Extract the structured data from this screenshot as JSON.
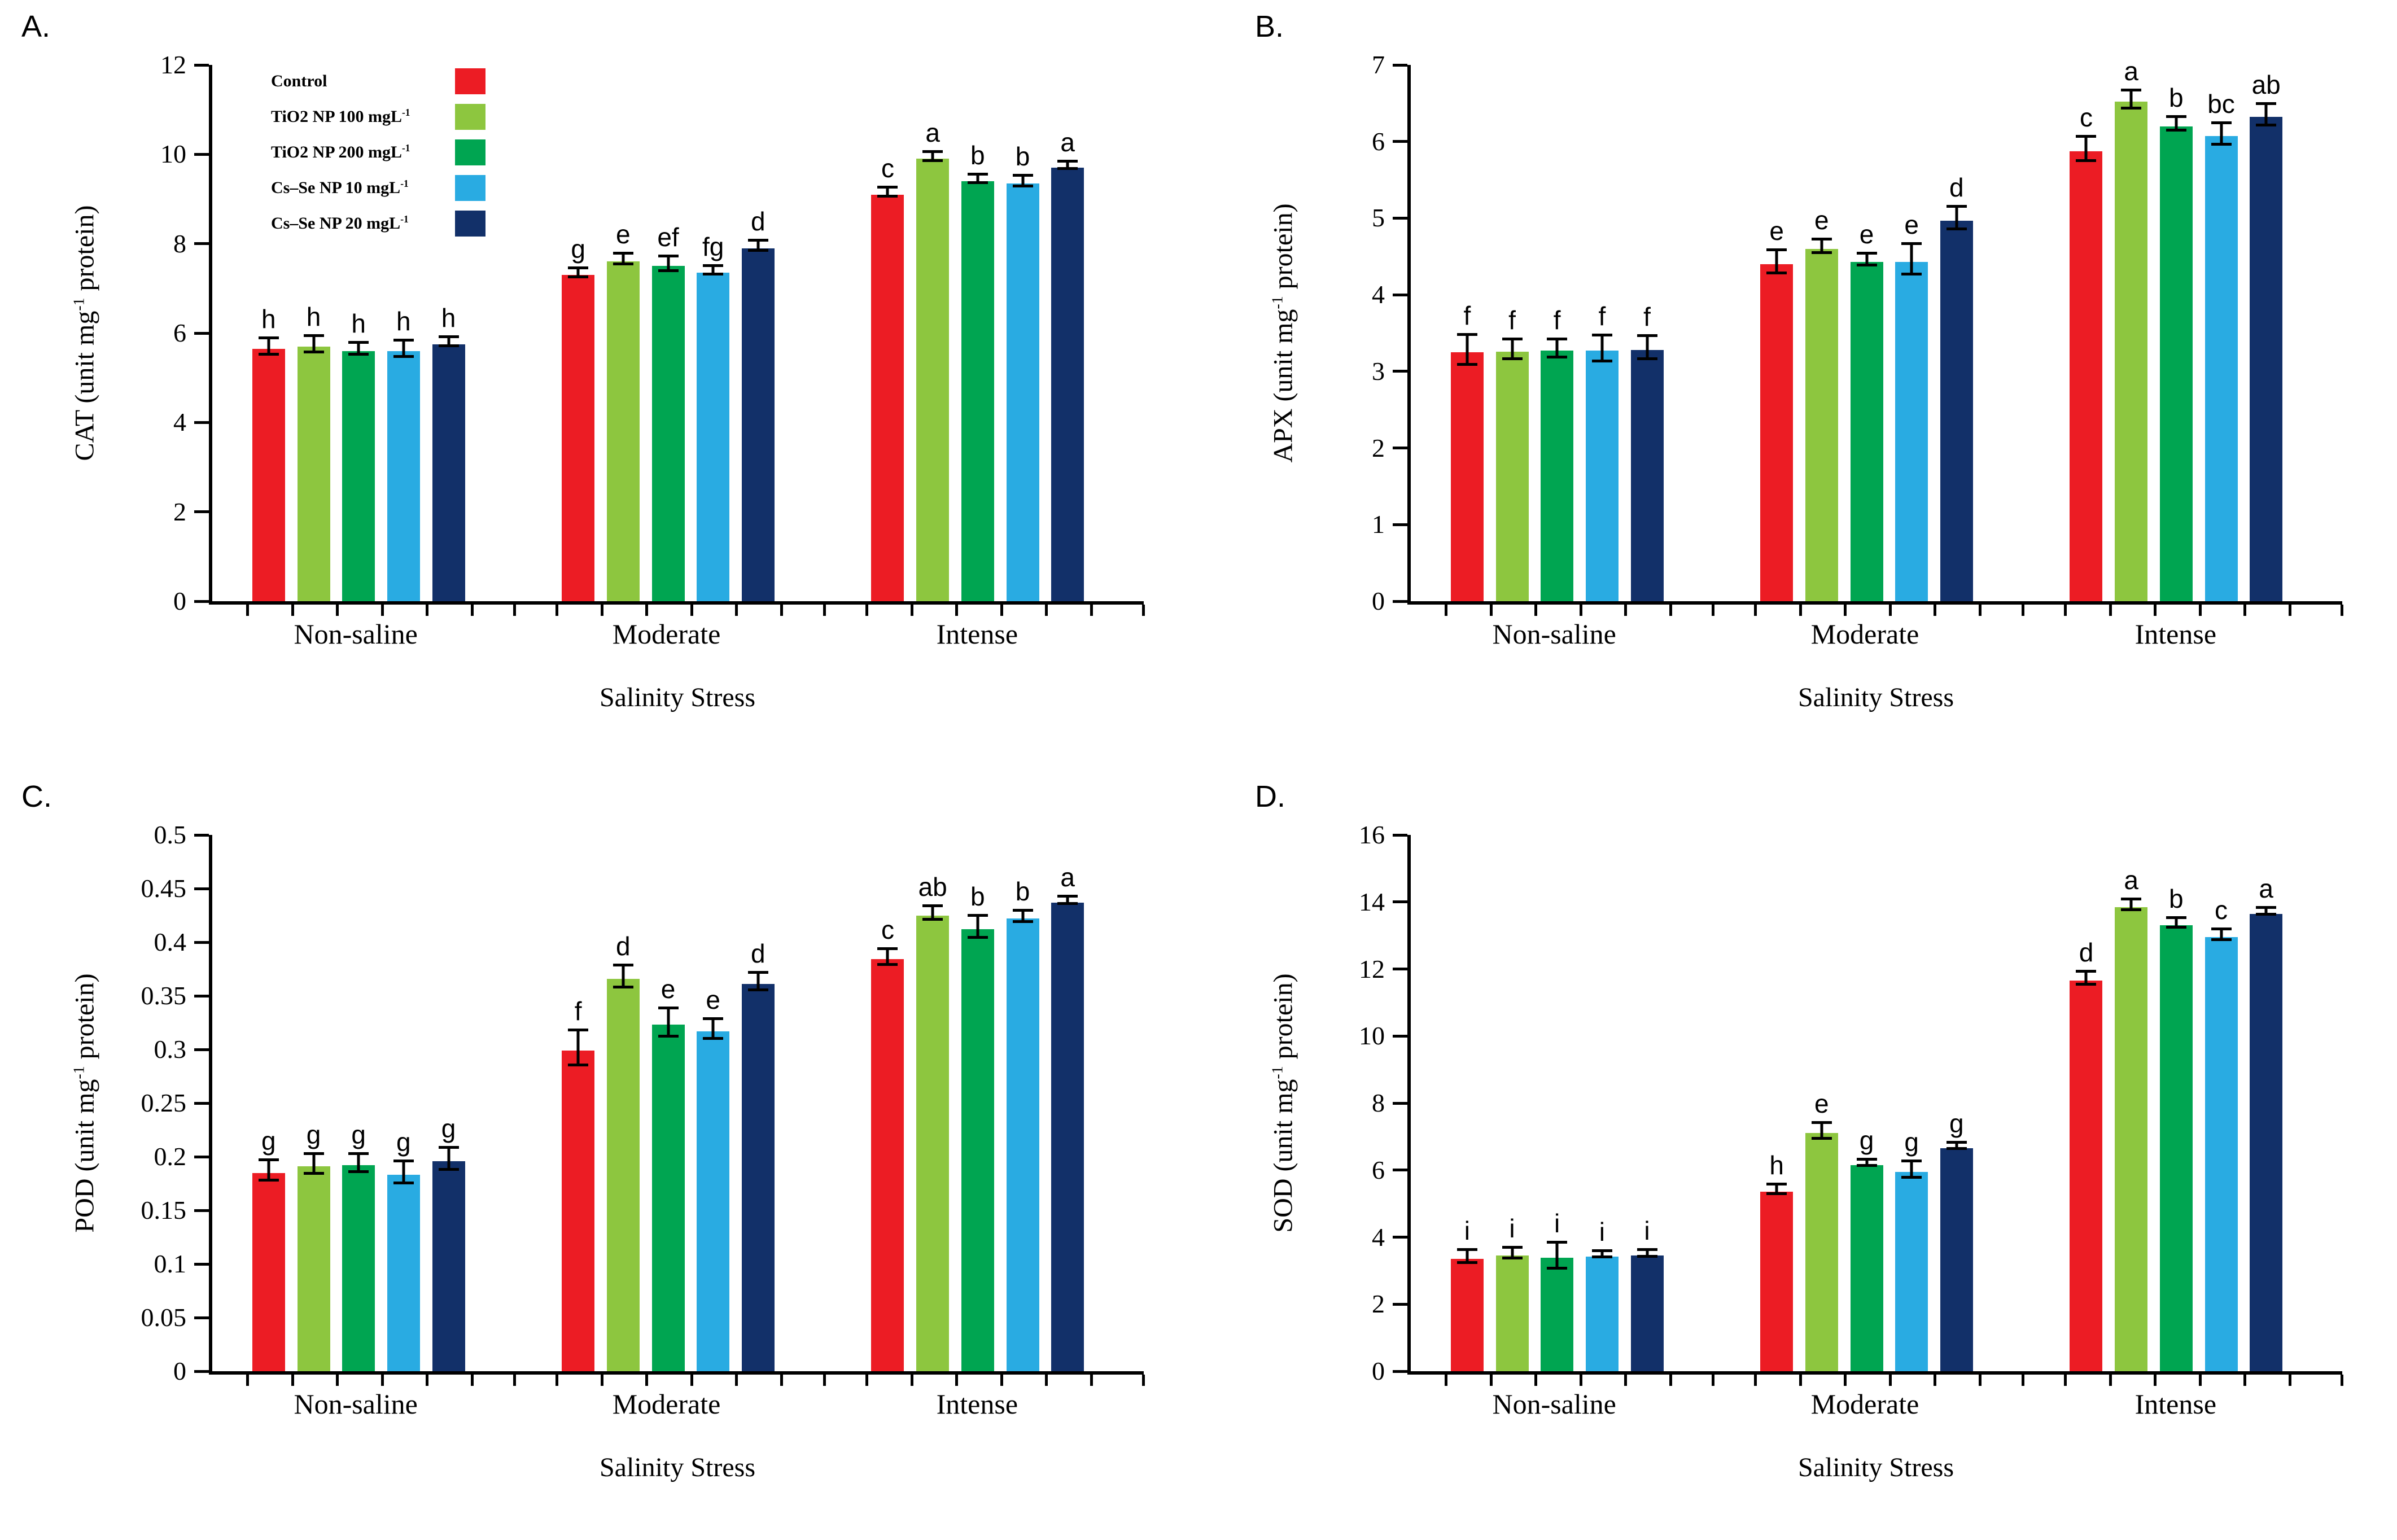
{
  "legend": {
    "items": [
      {
        "text": "Control",
        "sup": "",
        "color": "#EC1C24"
      },
      {
        "text": "TiO2 NP 100 mgL",
        "sup": "-1",
        "color": "#8DC63F"
      },
      {
        "text": "TiO2 NP 200 mgL",
        "sup": "-1",
        "color": "#00A551"
      },
      {
        "text": "Cs–Se NP 10 mgL",
        "sup": "-1",
        "color": "#29ABE2"
      },
      {
        "text": "Cs–Se NP 20 mgL",
        "sup": "-1",
        "color": "#123069"
      }
    ]
  },
  "chart_data": [
    {
      "type": "bar",
      "panel_label": "A.",
      "ylabel": {
        "prefix": "CAT (unit mg",
        "sup": "-1",
        "suffix": " protein)"
      },
      "xlabel": "Salinity Stress",
      "ylim": [
        0,
        12
      ],
      "ytick_step": 2,
      "grid": false,
      "legend_visible": true,
      "categories": [
        "Non-saline",
        "Moderate",
        "Intense"
      ],
      "series": [
        {
          "name": "Control",
          "color": "#EC1C24",
          "values": [
            5.65,
            7.3,
            9.1
          ],
          "errors": [
            0.15,
            0.07,
            0.07
          ],
          "letters": [
            "h",
            "g",
            "c"
          ]
        },
        {
          "name": "TiO2 NP 100 mgL-1",
          "color": "#8DC63F",
          "values": [
            5.7,
            7.6,
            9.9
          ],
          "errors": [
            0.15,
            0.09,
            0.07
          ],
          "letters": [
            "h",
            "e",
            "a"
          ]
        },
        {
          "name": "TiO2 NP 200 mgL-1",
          "color": "#00A551",
          "values": [
            5.6,
            7.5,
            9.4
          ],
          "errors": [
            0.1,
            0.13,
            0.06
          ],
          "letters": [
            "h",
            "ef",
            "b"
          ]
        },
        {
          "name": "Cs–Se NP 10 mgL-1",
          "color": "#29ABE2",
          "values": [
            5.6,
            7.35,
            9.35
          ],
          "errors": [
            0.15,
            0.06,
            0.09
          ],
          "letters": [
            "h",
            "fg",
            "b"
          ]
        },
        {
          "name": "Cs–Se NP 20 mgL-1",
          "color": "#123069",
          "values": [
            5.75,
            7.9,
            9.7
          ],
          "errors": [
            0.07,
            0.08,
            0.05
          ],
          "letters": [
            "h",
            "d",
            "a"
          ]
        }
      ]
    },
    {
      "type": "bar",
      "panel_label": "B.",
      "ylabel": {
        "prefix": "APX (unit mg",
        "sup": "-1",
        "suffix": " protein)"
      },
      "xlabel": "Salinity Stress",
      "ylim": [
        0,
        7
      ],
      "ytick_step": 1,
      "grid": false,
      "legend_visible": false,
      "categories": [
        "Non-saline",
        "Moderate",
        "Intense"
      ],
      "series": [
        {
          "name": "Control",
          "color": "#EC1C24",
          "values": [
            3.25,
            4.4,
            5.87
          ],
          "errors": [
            0.18,
            0.13,
            0.14
          ],
          "letters": [
            "f",
            "e",
            "c"
          ]
        },
        {
          "name": "TiO2 NP 100 mgL-1",
          "color": "#8DC63F",
          "values": [
            3.26,
            4.6,
            6.52
          ],
          "errors": [
            0.11,
            0.07,
            0.1
          ],
          "letters": [
            "f",
            "e",
            "a"
          ]
        },
        {
          "name": "TiO2 NP 200 mgL-1",
          "color": "#00A551",
          "values": [
            3.27,
            4.43,
            6.2
          ],
          "errors": [
            0.1,
            0.06,
            0.07
          ],
          "letters": [
            "f",
            "e",
            "b"
          ]
        },
        {
          "name": "Cs–Se NP 10 mgL-1",
          "color": "#29ABE2",
          "values": [
            3.27,
            4.43,
            6.07
          ],
          "errors": [
            0.15,
            0.18,
            0.12
          ],
          "letters": [
            "f",
            "e",
            "bc"
          ]
        },
        {
          "name": "Cs–Se NP 20 mgL-1",
          "color": "#123069",
          "values": [
            3.28,
            4.97,
            6.32
          ],
          "errors": [
            0.13,
            0.13,
            0.12
          ],
          "letters": [
            "f",
            "d",
            "ab"
          ]
        }
      ]
    },
    {
      "type": "bar",
      "panel_label": "C.",
      "ylabel": {
        "prefix": "POD (unit mg",
        "sup": "-1",
        "suffix": " protein)"
      },
      "xlabel": "Salinity Stress",
      "ylim": [
        0,
        0.5
      ],
      "ytick_step": 0.05,
      "grid": false,
      "legend_visible": false,
      "categories": [
        "Non-saline",
        "Moderate",
        "Intense"
      ],
      "series": [
        {
          "name": "Control",
          "color": "#EC1C24",
          "values": [
            0.185,
            0.299,
            0.384
          ],
          "errors": [
            0.008,
            0.015,
            0.006
          ],
          "letters": [
            "g",
            "f",
            "c"
          ]
        },
        {
          "name": "TiO2 NP 100 mgL-1",
          "color": "#8DC63F",
          "values": [
            0.191,
            0.366,
            0.425
          ],
          "errors": [
            0.008,
            0.009,
            0.005
          ],
          "letters": [
            "g",
            "d",
            "ab"
          ]
        },
        {
          "name": "TiO2 NP 200 mgL-1",
          "color": "#00A551",
          "values": [
            0.192,
            0.323,
            0.412
          ],
          "errors": [
            0.007,
            0.012,
            0.009
          ],
          "letters": [
            "g",
            "e",
            "b"
          ]
        },
        {
          "name": "Cs–Se NP 10 mgL-1",
          "color": "#29ABE2",
          "values": [
            0.183,
            0.317,
            0.422
          ],
          "errors": [
            0.009,
            0.008,
            0.004
          ],
          "letters": [
            "g",
            "e",
            "b"
          ]
        },
        {
          "name": "Cs–Se NP 20 mgL-1",
          "color": "#123069",
          "values": [
            0.196,
            0.361,
            0.437
          ],
          "errors": [
            0.009,
            0.007,
            0.002
          ],
          "letters": [
            "g",
            "d",
            "a"
          ]
        }
      ]
    },
    {
      "type": "bar",
      "panel_label": "D.",
      "ylabel": {
        "prefix": "SOD (unit mg",
        "sup": "-1",
        "suffix": " protein)"
      },
      "xlabel": "Salinity Stress",
      "ylim": [
        0,
        16
      ],
      "ytick_step": 2,
      "grid": false,
      "legend_visible": false,
      "categories": [
        "Non-saline",
        "Moderate",
        "Intense"
      ],
      "series": [
        {
          "name": "Control",
          "color": "#EC1C24",
          "values": [
            3.35,
            5.35,
            11.65
          ],
          "errors": [
            0.15,
            0.1,
            0.15
          ],
          "letters": [
            "i",
            "h",
            "d"
          ]
        },
        {
          "name": "TiO2 NP 100 mgL-1",
          "color": "#8DC63F",
          "values": [
            3.45,
            7.1,
            13.85
          ],
          "errors": [
            0.12,
            0.2,
            0.12
          ],
          "letters": [
            "i",
            "e",
            "a"
          ]
        },
        {
          "name": "TiO2 NP 200 mgL-1",
          "color": "#00A551",
          "values": [
            3.38,
            6.15,
            13.3
          ],
          "errors": [
            0.35,
            0.05,
            0.1
          ],
          "letters": [
            "i",
            "g",
            "b"
          ]
        },
        {
          "name": "Cs–Se NP 10 mgL-1",
          "color": "#29ABE2",
          "values": [
            3.42,
            5.95,
            12.95
          ],
          "errors": [
            0.05,
            0.2,
            0.12
          ],
          "letters": [
            "i",
            "g",
            "c"
          ]
        },
        {
          "name": "Cs–Se NP 20 mgL-1",
          "color": "#123069",
          "values": [
            3.45,
            6.65,
            13.65
          ],
          "errors": [
            0.06,
            0.05,
            0.06
          ],
          "letters": [
            "i",
            "g",
            "a"
          ]
        }
      ]
    }
  ]
}
